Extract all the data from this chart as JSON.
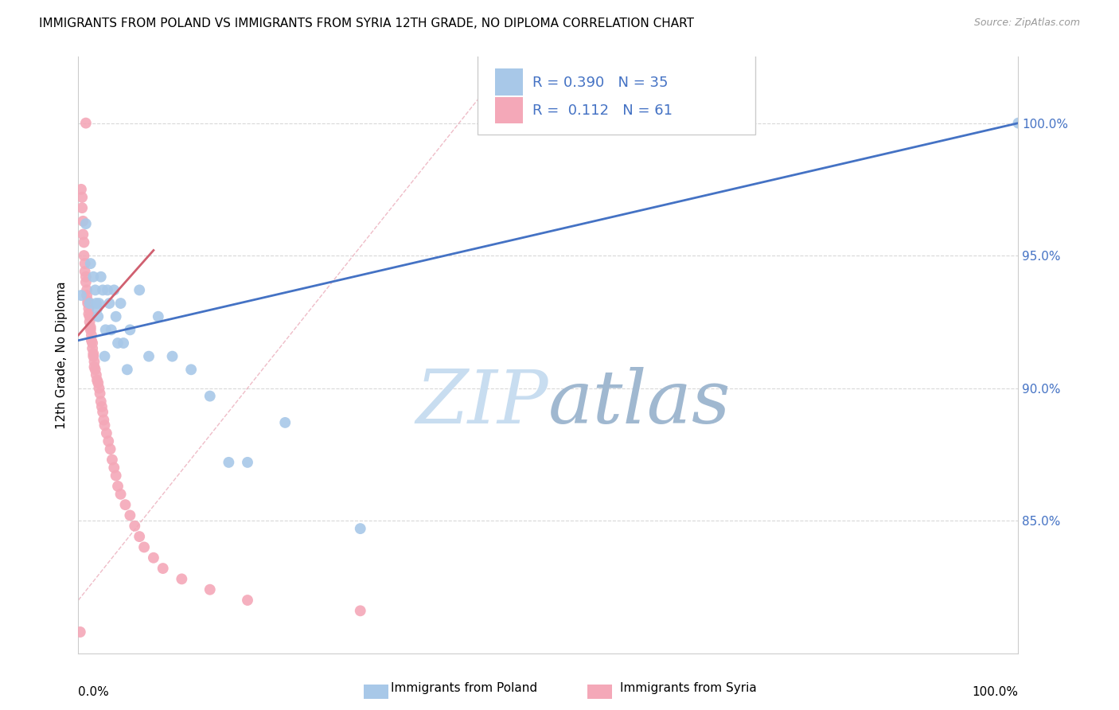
{
  "title": "IMMIGRANTS FROM POLAND VS IMMIGRANTS FROM SYRIA 12TH GRADE, NO DIPLOMA CORRELATION CHART",
  "source": "Source: ZipAtlas.com",
  "ylabel": "12th Grade, No Diploma",
  "legend_r_poland": "R = 0.390",
  "legend_n_poland": "N = 35",
  "legend_r_syria": "R =  0.112",
  "legend_n_syria": "N = 61",
  "poland_color": "#a8c8e8",
  "syria_color": "#f4a8b8",
  "poland_line_color": "#4472c4",
  "syria_line_color": "#d06070",
  "diagonal_color": "#cccccc",
  "watermark_color_zip": "#c8ddf0",
  "watermark_color_atlas": "#a0b8d0",
  "poland_scatter_x": [
    0.003,
    0.008,
    0.012,
    0.013,
    0.016,
    0.018,
    0.019,
    0.02,
    0.021,
    0.022,
    0.024,
    0.026,
    0.028,
    0.029,
    0.031,
    0.033,
    0.035,
    0.038,
    0.04,
    0.042,
    0.045,
    0.048,
    0.052,
    0.055,
    0.065,
    0.075,
    0.085,
    0.1,
    0.12,
    0.14,
    0.16,
    0.18,
    0.22,
    0.3,
    1.0
  ],
  "poland_scatter_y": [
    0.935,
    0.962,
    0.932,
    0.947,
    0.942,
    0.937,
    0.932,
    0.93,
    0.927,
    0.932,
    0.942,
    0.937,
    0.912,
    0.922,
    0.937,
    0.932,
    0.922,
    0.937,
    0.927,
    0.917,
    0.932,
    0.917,
    0.907,
    0.922,
    0.937,
    0.912,
    0.927,
    0.912,
    0.907,
    0.897,
    0.872,
    0.872,
    0.887,
    0.847,
    1.0
  ],
  "syria_scatter_x": [
    0.002,
    0.003,
    0.004,
    0.004,
    0.005,
    0.005,
    0.006,
    0.006,
    0.007,
    0.007,
    0.008,
    0.008,
    0.009,
    0.009,
    0.01,
    0.01,
    0.011,
    0.011,
    0.012,
    0.012,
    0.013,
    0.013,
    0.014,
    0.014,
    0.015,
    0.015,
    0.016,
    0.016,
    0.017,
    0.017,
    0.018,
    0.019,
    0.02,
    0.021,
    0.022,
    0.023,
    0.024,
    0.025,
    0.026,
    0.027,
    0.028,
    0.03,
    0.032,
    0.034,
    0.036,
    0.038,
    0.04,
    0.042,
    0.045,
    0.05,
    0.055,
    0.06,
    0.065,
    0.07,
    0.08,
    0.09,
    0.11,
    0.14,
    0.18,
    0.3,
    0.008
  ],
  "syria_scatter_y": [
    0.808,
    0.975,
    0.972,
    0.968,
    0.963,
    0.958,
    0.955,
    0.95,
    0.947,
    0.944,
    0.942,
    0.94,
    0.937,
    0.935,
    0.933,
    0.932,
    0.93,
    0.928,
    0.927,
    0.925,
    0.923,
    0.922,
    0.92,
    0.918,
    0.917,
    0.915,
    0.913,
    0.912,
    0.91,
    0.908,
    0.907,
    0.905,
    0.903,
    0.902,
    0.9,
    0.898,
    0.895,
    0.893,
    0.891,
    0.888,
    0.886,
    0.883,
    0.88,
    0.877,
    0.873,
    0.87,
    0.867,
    0.863,
    0.86,
    0.856,
    0.852,
    0.848,
    0.844,
    0.84,
    0.836,
    0.832,
    0.828,
    0.824,
    0.82,
    0.816,
    1.0
  ],
  "xlim": [
    0.0,
    1.0
  ],
  "ylim": [
    0.8,
    1.025
  ]
}
